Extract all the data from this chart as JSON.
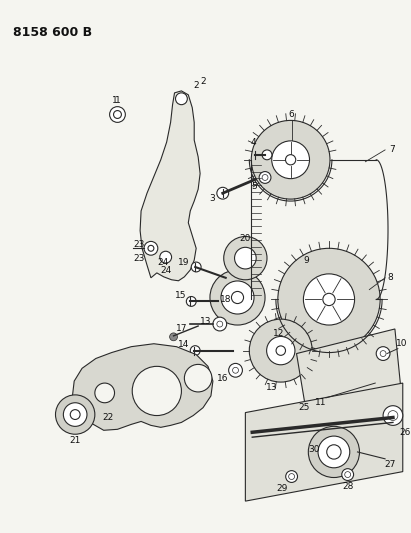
{
  "title": "8158 600 B",
  "background_color": "#f5f5f0",
  "line_color": "#2a2a2a",
  "text_color": "#111111",
  "fig_width": 4.11,
  "fig_height": 5.33,
  "dpi": 100
}
